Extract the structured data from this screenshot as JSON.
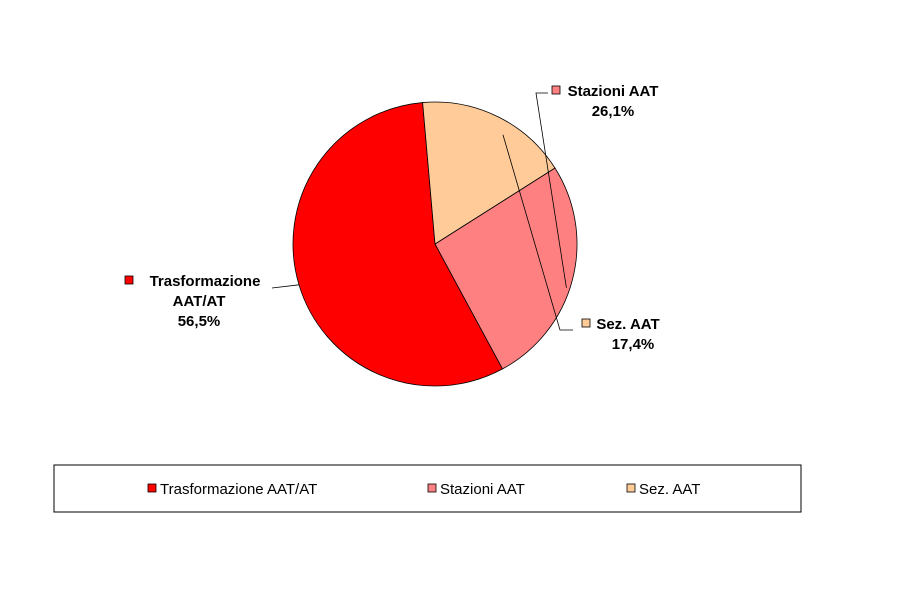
{
  "chart_data": {
    "type": "pie",
    "title": "",
    "categories": [
      "Trasformazione AAT/AT",
      "Stazioni AAT",
      "Sez. AAT"
    ],
    "values": [
      56.5,
      26.1,
      17.4
    ],
    "value_labels": [
      "56,5%",
      "26,1%",
      "17,4%"
    ],
    "data_label_names": [
      [
        "Trasformazione",
        "AAT/AT"
      ],
      [
        "Stazioni AAT"
      ],
      [
        "Sez. AAT"
      ]
    ],
    "colors": [
      "#ff0000",
      "#ff8080",
      "#ffcc99"
    ],
    "legend": {
      "placement": "bottom",
      "entries": [
        "Trasformazione AAT/AT",
        "Stazioni AAT",
        "Sez. AAT"
      ]
    }
  }
}
